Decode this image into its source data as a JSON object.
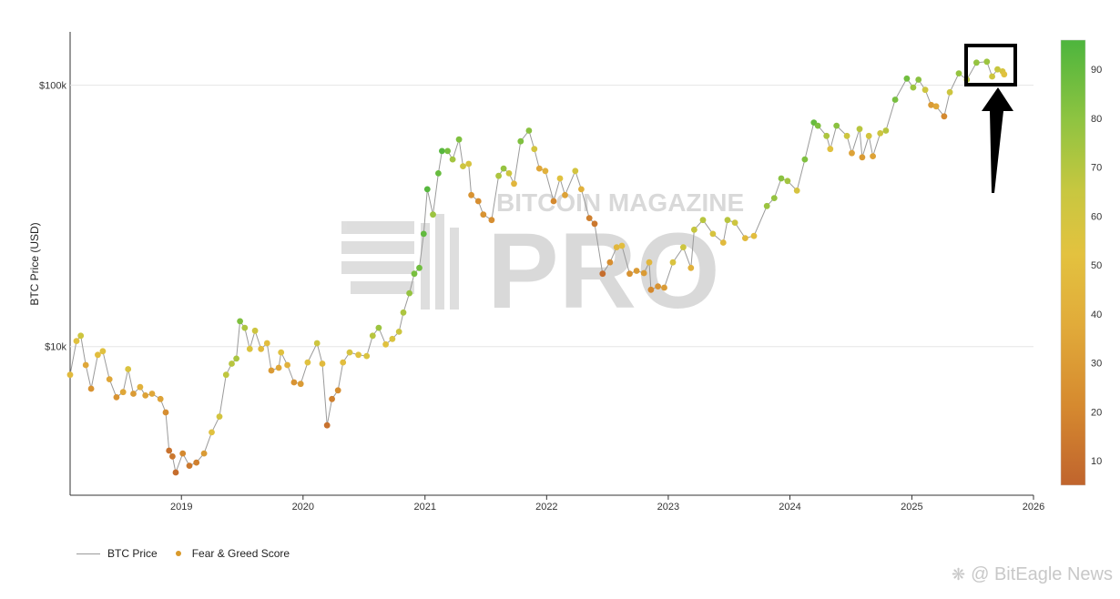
{
  "chart_data": {
    "type": "scatter",
    "title": "",
    "xlabel": "",
    "ylabel": "BTC Price (USD)",
    "y_scale": "log",
    "ylim": [
      2700,
      160000
    ],
    "xlim": [
      "2018-02-01",
      "2026-01-01"
    ],
    "x_ticks": [
      "2019",
      "2020",
      "2021",
      "2022",
      "2023",
      "2024",
      "2025",
      "2026"
    ],
    "y_ticks": [
      {
        "value": 10000,
        "label": "$10k"
      },
      {
        "value": 100000,
        "label": "$100k"
      }
    ],
    "colorbar": {
      "min": 5,
      "max": 96,
      "ticks": [
        10,
        20,
        30,
        40,
        50,
        60,
        70,
        80,
        90
      ],
      "colors": [
        "#c0642d",
        "#d4892f",
        "#e0aa3a",
        "#e2c13f",
        "#c9c63f",
        "#9cc440",
        "#6dbd3f",
        "#4db53d"
      ]
    },
    "grid": {
      "horizontal": true,
      "vertical": false
    },
    "legend": {
      "placement": "bottom-left"
    },
    "watermark": "BITCOIN MAGAZINE PRO",
    "annotation": "highlight box with up arrow at latest data (2025 peak)",
    "series": [
      {
        "name": "BTC Price",
        "kind": "line",
        "color": "#9a9a9a"
      },
      {
        "name": "Fear & Greed Score",
        "kind": "scatter",
        "points": [
          [
            "2018-02-01",
            7800,
            40
          ],
          [
            "2018-02-20",
            10500,
            45
          ],
          [
            "2018-03-05",
            11000,
            55
          ],
          [
            "2018-03-20",
            8500,
            30
          ],
          [
            "2018-04-05",
            6900,
            22
          ],
          [
            "2018-04-25",
            9300,
            42
          ],
          [
            "2018-05-10",
            9600,
            45
          ],
          [
            "2018-05-30",
            7500,
            30
          ],
          [
            "2018-06-20",
            6400,
            22
          ],
          [
            "2018-07-10",
            6700,
            30
          ],
          [
            "2018-07-25",
            8200,
            48
          ],
          [
            "2018-08-10",
            6600,
            25
          ],
          [
            "2018-08-30",
            7000,
            35
          ],
          [
            "2018-09-15",
            6500,
            28
          ],
          [
            "2018-10-05",
            6600,
            30
          ],
          [
            "2018-10-30",
            6300,
            28
          ],
          [
            "2018-11-15",
            5600,
            20
          ],
          [
            "2018-11-25",
            4000,
            10
          ],
          [
            "2018-12-05",
            3800,
            12
          ],
          [
            "2018-12-15",
            3300,
            8
          ],
          [
            "2019-01-05",
            3900,
            18
          ],
          [
            "2019-01-25",
            3500,
            12
          ],
          [
            "2019-02-15",
            3600,
            15
          ],
          [
            "2019-03-10",
            3900,
            25
          ],
          [
            "2019-04-02",
            4700,
            45
          ],
          [
            "2019-04-25",
            5400,
            52
          ],
          [
            "2019-05-15",
            7800,
            60
          ],
          [
            "2019-06-01",
            8600,
            62
          ],
          [
            "2019-06-15",
            9000,
            66
          ],
          [
            "2019-06-26",
            12500,
            78
          ],
          [
            "2019-07-10",
            11800,
            65
          ],
          [
            "2019-07-25",
            9800,
            48
          ],
          [
            "2019-08-10",
            11500,
            55
          ],
          [
            "2019-08-28",
            9800,
            40
          ],
          [
            "2019-09-15",
            10300,
            42
          ],
          [
            "2019-09-28",
            8100,
            25
          ],
          [
            "2019-10-20",
            8300,
            30
          ],
          [
            "2019-10-27",
            9500,
            45
          ],
          [
            "2019-11-15",
            8500,
            35
          ],
          [
            "2019-12-05",
            7300,
            22
          ],
          [
            "2019-12-25",
            7200,
            25
          ],
          [
            "2020-01-15",
            8700,
            45
          ],
          [
            "2020-02-12",
            10300,
            55
          ],
          [
            "2020-02-28",
            8600,
            40
          ],
          [
            "2020-03-13",
            5000,
            10
          ],
          [
            "2020-03-28",
            6300,
            15
          ],
          [
            "2020-04-15",
            6800,
            20
          ],
          [
            "2020-04-30",
            8700,
            42
          ],
          [
            "2020-05-20",
            9500,
            50
          ],
          [
            "2020-06-15",
            9300,
            45
          ],
          [
            "2020-07-10",
            9200,
            48
          ],
          [
            "2020-07-28",
            11000,
            62
          ],
          [
            "2020-08-15",
            11800,
            70
          ],
          [
            "2020-09-05",
            10200,
            45
          ],
          [
            "2020-09-25",
            10700,
            48
          ],
          [
            "2020-10-15",
            11400,
            55
          ],
          [
            "2020-10-28",
            13500,
            65
          ],
          [
            "2020-11-15",
            16000,
            72
          ],
          [
            "2020-11-30",
            19000,
            80
          ],
          [
            "2020-12-15",
            20000,
            82
          ],
          [
            "2020-12-28",
            27000,
            88
          ],
          [
            "2021-01-08",
            40000,
            92
          ],
          [
            "2021-01-25",
            32000,
            70
          ],
          [
            "2021-02-10",
            46000,
            85
          ],
          [
            "2021-02-21",
            56000,
            92
          ],
          [
            "2021-03-10",
            56000,
            80
          ],
          [
            "2021-03-25",
            52000,
            68
          ],
          [
            "2021-04-13",
            62000,
            78
          ],
          [
            "2021-04-25",
            49000,
            55
          ],
          [
            "2021-05-12",
            50000,
            50
          ],
          [
            "2021-05-20",
            38000,
            22
          ],
          [
            "2021-06-10",
            36000,
            20
          ],
          [
            "2021-06-25",
            32000,
            22
          ],
          [
            "2021-07-20",
            30500,
            20
          ],
          [
            "2021-08-10",
            45000,
            65
          ],
          [
            "2021-08-25",
            48000,
            72
          ],
          [
            "2021-09-10",
            46000,
            55
          ],
          [
            "2021-09-25",
            42000,
            38
          ],
          [
            "2021-10-15",
            61000,
            78
          ],
          [
            "2021-11-09",
            67000,
            75
          ],
          [
            "2021-11-25",
            57000,
            52
          ],
          [
            "2021-12-10",
            48000,
            30
          ],
          [
            "2021-12-28",
            47000,
            35
          ],
          [
            "2022-01-22",
            36000,
            18
          ],
          [
            "2022-02-10",
            44000,
            45
          ],
          [
            "2022-02-25",
            38000,
            28
          ],
          [
            "2022-03-28",
            47000,
            52
          ],
          [
            "2022-04-15",
            40000,
            35
          ],
          [
            "2022-05-09",
            31000,
            15
          ],
          [
            "2022-05-25",
            29500,
            12
          ],
          [
            "2022-06-18",
            19000,
            8
          ],
          [
            "2022-07-10",
            21000,
            20
          ],
          [
            "2022-07-30",
            24000,
            38
          ],
          [
            "2022-08-15",
            24300,
            42
          ],
          [
            "2022-09-07",
            19000,
            22
          ],
          [
            "2022-09-28",
            19500,
            25
          ],
          [
            "2022-10-20",
            19100,
            25
          ],
          [
            "2022-11-05",
            21000,
            38
          ],
          [
            "2022-11-10",
            16500,
            18
          ],
          [
            "2022-12-01",
            17000,
            22
          ],
          [
            "2022-12-20",
            16800,
            25
          ],
          [
            "2023-01-15",
            21000,
            48
          ],
          [
            "2023-02-15",
            24000,
            55
          ],
          [
            "2023-03-10",
            20000,
            35
          ],
          [
            "2023-03-20",
            28000,
            58
          ],
          [
            "2023-04-15",
            30500,
            62
          ],
          [
            "2023-05-15",
            27000,
            50
          ],
          [
            "2023-06-15",
            25000,
            40
          ],
          [
            "2023-06-28",
            30500,
            62
          ],
          [
            "2023-07-20",
            29800,
            55
          ],
          [
            "2023-08-20",
            26000,
            40
          ],
          [
            "2023-09-15",
            26500,
            42
          ],
          [
            "2023-10-24",
            34500,
            70
          ],
          [
            "2023-11-15",
            37000,
            72
          ],
          [
            "2023-12-06",
            44000,
            75
          ],
          [
            "2023-12-25",
            43000,
            68
          ],
          [
            "2024-01-22",
            39500,
            50
          ],
          [
            "2024-02-15",
            52000,
            78
          ],
          [
            "2024-03-13",
            72000,
            85
          ],
          [
            "2024-03-25",
            70000,
            78
          ],
          [
            "2024-04-20",
            64000,
            65
          ],
          [
            "2024-05-01",
            57000,
            45
          ],
          [
            "2024-05-20",
            70000,
            75
          ],
          [
            "2024-06-20",
            64000,
            55
          ],
          [
            "2024-07-05",
            55000,
            28
          ],
          [
            "2024-07-28",
            68000,
            62
          ],
          [
            "2024-08-05",
            53000,
            25
          ],
          [
            "2024-08-25",
            64000,
            52
          ],
          [
            "2024-09-06",
            53500,
            28
          ],
          [
            "2024-09-28",
            65500,
            55
          ],
          [
            "2024-10-15",
            67000,
            62
          ],
          [
            "2024-11-12",
            88000,
            80
          ],
          [
            "2024-12-17",
            106000,
            82
          ],
          [
            "2025-01-05",
            98000,
            70
          ],
          [
            "2025-01-21",
            105000,
            75
          ],
          [
            "2025-02-10",
            96000,
            55
          ],
          [
            "2025-02-28",
            84000,
            25
          ],
          [
            "2025-03-15",
            83000,
            30
          ],
          [
            "2025-04-08",
            76000,
            18
          ],
          [
            "2025-04-25",
            94000,
            55
          ],
          [
            "2025-05-22",
            111000,
            72
          ],
          [
            "2025-06-15",
            105000,
            62
          ],
          [
            "2025-07-14",
            122000,
            72
          ],
          [
            "2025-08-14",
            123000,
            70
          ],
          [
            "2025-08-30",
            108000,
            55
          ],
          [
            "2025-09-15",
            115000,
            58
          ],
          [
            "2025-09-30",
            113000,
            50
          ],
          [
            "2025-10-05",
            110000,
            45
          ]
        ]
      }
    ]
  },
  "legend_labels": {
    "price": "BTC Price",
    "score": "Fear & Greed Score"
  },
  "credit": "@ BitEagle News"
}
